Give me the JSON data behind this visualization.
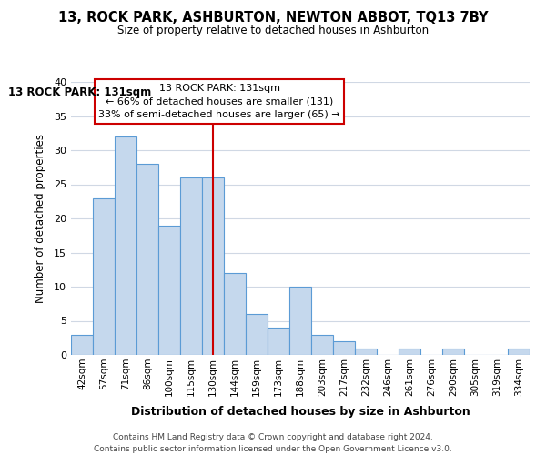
{
  "title": "13, ROCK PARK, ASHBURTON, NEWTON ABBOT, TQ13 7BY",
  "subtitle": "Size of property relative to detached houses in Ashburton",
  "xlabel": "Distribution of detached houses by size in Ashburton",
  "ylabel": "Number of detached properties",
  "bar_labels": [
    "42sqm",
    "57sqm",
    "71sqm",
    "86sqm",
    "100sqm",
    "115sqm",
    "130sqm",
    "144sqm",
    "159sqm",
    "173sqm",
    "188sqm",
    "203sqm",
    "217sqm",
    "232sqm",
    "246sqm",
    "261sqm",
    "276sqm",
    "290sqm",
    "305sqm",
    "319sqm",
    "334sqm"
  ],
  "bar_values": [
    3,
    23,
    32,
    28,
    19,
    26,
    26,
    12,
    6,
    4,
    10,
    3,
    2,
    1,
    0,
    1,
    0,
    1,
    0,
    0,
    1
  ],
  "bar_color": "#c5d8ed",
  "bar_edge_color": "#5b9bd5",
  "highlight_index": 6,
  "highlight_line_color": "#cc0000",
  "ylim": [
    0,
    40
  ],
  "yticks": [
    0,
    5,
    10,
    15,
    20,
    25,
    30,
    35,
    40
  ],
  "annotation_title": "13 ROCK PARK: 131sqm",
  "annotation_line1": "← 66% of detached houses are smaller (131)",
  "annotation_line2": "33% of semi-detached houses are larger (65) →",
  "annotation_box_color": "#ffffff",
  "annotation_box_edge": "#cc0000",
  "footer_line1": "Contains HM Land Registry data © Crown copyright and database right 2024.",
  "footer_line2": "Contains public sector information licensed under the Open Government Licence v3.0.",
  "background_color": "#ffffff",
  "grid_color": "#d0d8e4"
}
